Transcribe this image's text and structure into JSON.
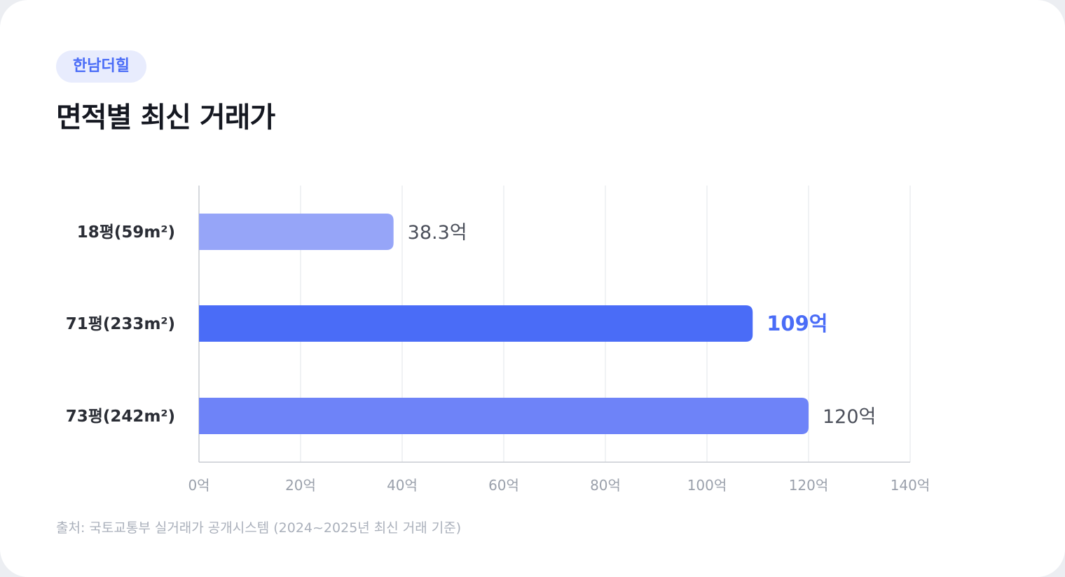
{
  "badge": "한남더힐",
  "title": "면적별 최신 거래가",
  "source": "출처: 국토교통부 실거래가 공개시스템 (2024~2025년 최신 거래 기준)",
  "chart_data": {
    "type": "bar",
    "orientation": "horizontal",
    "title": "면적별 최신 거래가",
    "categories": [
      "18평(59m²)",
      "71평(233m²)",
      "73평(242m²)"
    ],
    "values": [
      38.3,
      109,
      120
    ],
    "value_labels": [
      "38.3억",
      "109억",
      "120억"
    ],
    "highlight_index": 1,
    "bar_colors": [
      "#96a5f8",
      "#4a6cf7",
      "#6e83f8"
    ],
    "value_label_colors": [
      "#4b4f5a",
      "#4a6cf7",
      "#4b4f5a"
    ],
    "xlim": [
      0,
      140
    ],
    "xticks": [
      0,
      20,
      40,
      60,
      80,
      100,
      120,
      140
    ],
    "xtick_labels": [
      "0억",
      "20억",
      "40억",
      "60억",
      "80억",
      "100억",
      "120억",
      "140억"
    ],
    "grid": true,
    "legend": "none"
  }
}
